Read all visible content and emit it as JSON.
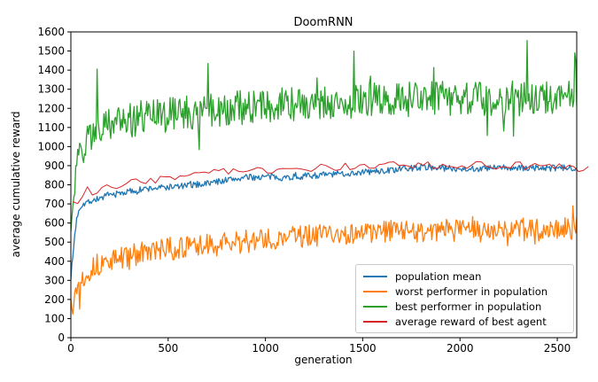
{
  "chart_data": {
    "type": "line",
    "title": "DoomRNN",
    "xlabel": "generation",
    "ylabel": "average cumulative reward",
    "xlim": [
      0,
      2600
    ],
    "ylim": [
      0,
      1600
    ],
    "xticks": [
      0,
      500,
      1000,
      1500,
      2000,
      2500
    ],
    "yticks": [
      0,
      100,
      200,
      300,
      400,
      500,
      600,
      700,
      800,
      900,
      1000,
      1100,
      1200,
      1300,
      1400,
      1500,
      1600
    ],
    "grid": false,
    "legend_position": "lower right",
    "background_color": "#ffffff",
    "spine_color": "#000000",
    "series": [
      {
        "name": "population mean",
        "color": "#1f77b4",
        "line_width": 1.3,
        "step": 5,
        "noise": 17,
        "spike_chance": 0.02,
        "spike_mult": 1.8,
        "seed": 7,
        "clip": true,
        "trend": [
          [
            0,
            320
          ],
          [
            10,
            420
          ],
          [
            20,
            540
          ],
          [
            30,
            620
          ],
          [
            40,
            670
          ],
          [
            60,
            700
          ],
          [
            100,
            715
          ],
          [
            150,
            730
          ],
          [
            200,
            745
          ],
          [
            300,
            765
          ],
          [
            400,
            780
          ],
          [
            500,
            788
          ],
          [
            600,
            795
          ],
          [
            700,
            808
          ],
          [
            800,
            825
          ],
          [
            900,
            838
          ],
          [
            1000,
            842
          ],
          [
            1100,
            838
          ],
          [
            1200,
            846
          ],
          [
            1300,
            852
          ],
          [
            1400,
            858
          ],
          [
            1500,
            866
          ],
          [
            1600,
            872
          ],
          [
            1700,
            882
          ],
          [
            1800,
            893
          ],
          [
            1900,
            888
          ],
          [
            2000,
            885
          ],
          [
            2100,
            884
          ],
          [
            2200,
            890
          ],
          [
            2300,
            886
          ],
          [
            2400,
            889
          ],
          [
            2500,
            886
          ],
          [
            2600,
            890
          ]
        ]
      },
      {
        "name": "worst performer in population",
        "color": "#ff7f0e",
        "line_width": 1.3,
        "step": 5,
        "noise": 60,
        "spike_chance": 0.04,
        "spike_mult": 1.6,
        "seed": 13,
        "clip": true,
        "extra_spikes": [
          [
            45,
            150
          ],
          [
            2580,
            690
          ]
        ],
        "trend": [
          [
            0,
            195
          ],
          [
            20,
            230
          ],
          [
            40,
            280
          ],
          [
            70,
            330
          ],
          [
            100,
            360
          ],
          [
            150,
            385
          ],
          [
            200,
            400
          ],
          [
            300,
            430
          ],
          [
            400,
            448
          ],
          [
            500,
            462
          ],
          [
            600,
            472
          ],
          [
            700,
            482
          ],
          [
            800,
            492
          ],
          [
            900,
            502
          ],
          [
            1000,
            512
          ],
          [
            1100,
            525
          ],
          [
            1200,
            532
          ],
          [
            1300,
            538
          ],
          [
            1400,
            542
          ],
          [
            1500,
            548
          ],
          [
            1600,
            552
          ],
          [
            1700,
            558
          ],
          [
            1800,
            560
          ],
          [
            1900,
            562
          ],
          [
            2000,
            560
          ],
          [
            2100,
            560
          ],
          [
            2200,
            563
          ],
          [
            2300,
            566
          ],
          [
            2400,
            568
          ],
          [
            2500,
            572
          ],
          [
            2600,
            575
          ]
        ]
      },
      {
        "name": "best performer in population",
        "color": "#2ca02c",
        "line_width": 1.3,
        "step": 5,
        "noise": 92,
        "spike_chance": 0.03,
        "spike_mult": 2.2,
        "seed": 29,
        "clip": true,
        "extra_spikes": [
          [
            135,
            1405
          ],
          [
            705,
            1435
          ],
          [
            1455,
            1500
          ],
          [
            2345,
            1555
          ],
          [
            2590,
            1490
          ]
        ],
        "trend": [
          [
            0,
            610
          ],
          [
            15,
            760
          ],
          [
            30,
            880
          ],
          [
            50,
            960
          ],
          [
            80,
            1030
          ],
          [
            120,
            1080
          ],
          [
            180,
            1110
          ],
          [
            250,
            1130
          ],
          [
            350,
            1148
          ],
          [
            500,
            1165
          ],
          [
            700,
            1185
          ],
          [
            900,
            1205
          ],
          [
            1100,
            1220
          ],
          [
            1300,
            1232
          ],
          [
            1500,
            1240
          ],
          [
            1700,
            1246
          ],
          [
            1900,
            1250
          ],
          [
            2100,
            1248
          ],
          [
            2300,
            1252
          ],
          [
            2500,
            1248
          ],
          [
            2600,
            1252
          ]
        ]
      },
      {
        "name": "average reward of best agent",
        "color": "#d62728",
        "line_width": 1.0,
        "step": 25,
        "noise": 18,
        "spike_chance": 0.06,
        "spike_mult": 1.5,
        "seed": 3,
        "clip": false,
        "trend": [
          [
            10,
            700
          ],
          [
            50,
            705
          ],
          [
            85,
            790
          ],
          [
            110,
            755
          ],
          [
            150,
            775
          ],
          [
            200,
            795
          ],
          [
            250,
            785
          ],
          [
            300,
            812
          ],
          [
            400,
            820
          ],
          [
            500,
            838
          ],
          [
            600,
            850
          ],
          [
            700,
            862
          ],
          [
            800,
            872
          ],
          [
            900,
            868
          ],
          [
            1000,
            878
          ],
          [
            1100,
            866
          ],
          [
            1200,
            880
          ],
          [
            1300,
            888
          ],
          [
            1400,
            895
          ],
          [
            1500,
            900
          ],
          [
            1600,
            900
          ],
          [
            1700,
            906
          ],
          [
            1800,
            905
          ],
          [
            1900,
            898
          ],
          [
            2000,
            902
          ],
          [
            2100,
            906
          ],
          [
            2200,
            898
          ],
          [
            2300,
            902
          ],
          [
            2400,
            898
          ],
          [
            2500,
            892
          ],
          [
            2560,
            900
          ],
          [
            2600,
            885
          ],
          [
            2635,
            870
          ],
          [
            2660,
            905
          ]
        ]
      }
    ]
  }
}
